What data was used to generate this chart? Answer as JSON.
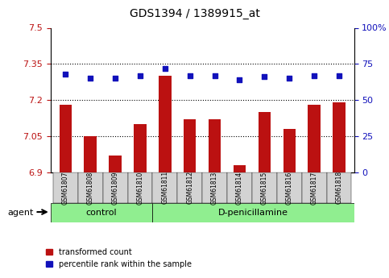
{
  "title": "GDS1394 / 1389915_at",
  "samples": [
    "GSM61807",
    "GSM61808",
    "GSM61809",
    "GSM61810",
    "GSM61811",
    "GSM61812",
    "GSM61813",
    "GSM61814",
    "GSM61815",
    "GSM61816",
    "GSM61817",
    "GSM61818"
  ],
  "transformed_count": [
    7.18,
    7.05,
    6.97,
    7.1,
    7.3,
    7.12,
    7.12,
    6.93,
    7.15,
    7.08,
    7.18,
    7.19
  ],
  "percentile_rank": [
    68,
    65,
    65,
    67,
    72,
    67,
    67,
    64,
    66,
    65,
    67,
    67
  ],
  "control_count": 4,
  "group_labels": [
    "control",
    "D-penicillamine"
  ],
  "bar_color": "#bb1111",
  "dot_color": "#1111bb",
  "ylim_left": [
    6.9,
    7.5
  ],
  "ylim_right": [
    0,
    100
  ],
  "yticks_left": [
    6.9,
    7.05,
    7.2,
    7.35,
    7.5
  ],
  "yticks_right": [
    0,
    25,
    50,
    75,
    100
  ],
  "ytick_labels_left": [
    "6.9",
    "7.05",
    "7.2",
    "7.35",
    "7.5"
  ],
  "ytick_labels_right": [
    "0",
    "25",
    "50",
    "75",
    "100%"
  ],
  "grid_values": [
    7.05,
    7.2,
    7.35
  ],
  "agent_label": "agent",
  "legend_items": [
    "transformed count",
    "percentile rank within the sample"
  ],
  "bg_color": "#f0f0f0",
  "plot_bg": "#ffffff",
  "group_bg": "#90ee90"
}
